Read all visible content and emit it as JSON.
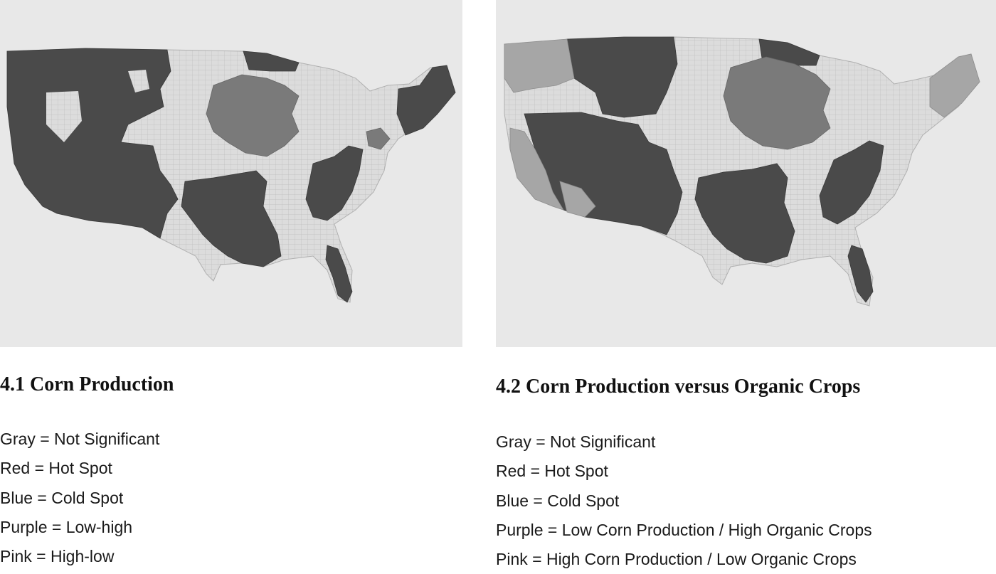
{
  "colors": {
    "map_background": "#e8e8e8",
    "not_significant_fill": "#dcdcdc",
    "hot_spot_fill": "#4a4a4a",
    "cold_spot_fill": "#7a7a7a",
    "low_high_fill": "#a6a6a6",
    "county_border": "#bdbdbd"
  },
  "panels": [
    {
      "title": "4.1 Corn Production",
      "legend": [
        "Gray = Not Significant",
        "Red = Hot Spot",
        "Blue = Cold Spot",
        "Purple = Low-high",
        "Pink = High-low"
      ]
    },
    {
      "title": "4.2 Corn Production versus Organic Crops",
      "legend": [
        "Gray = Not Significant",
        "Red = Hot Spot",
        "Blue = Cold Spot",
        "Purple = Low Corn Production / High Organic Crops",
        "Pink = High Corn Production / Low Organic Crops"
      ]
    }
  ]
}
